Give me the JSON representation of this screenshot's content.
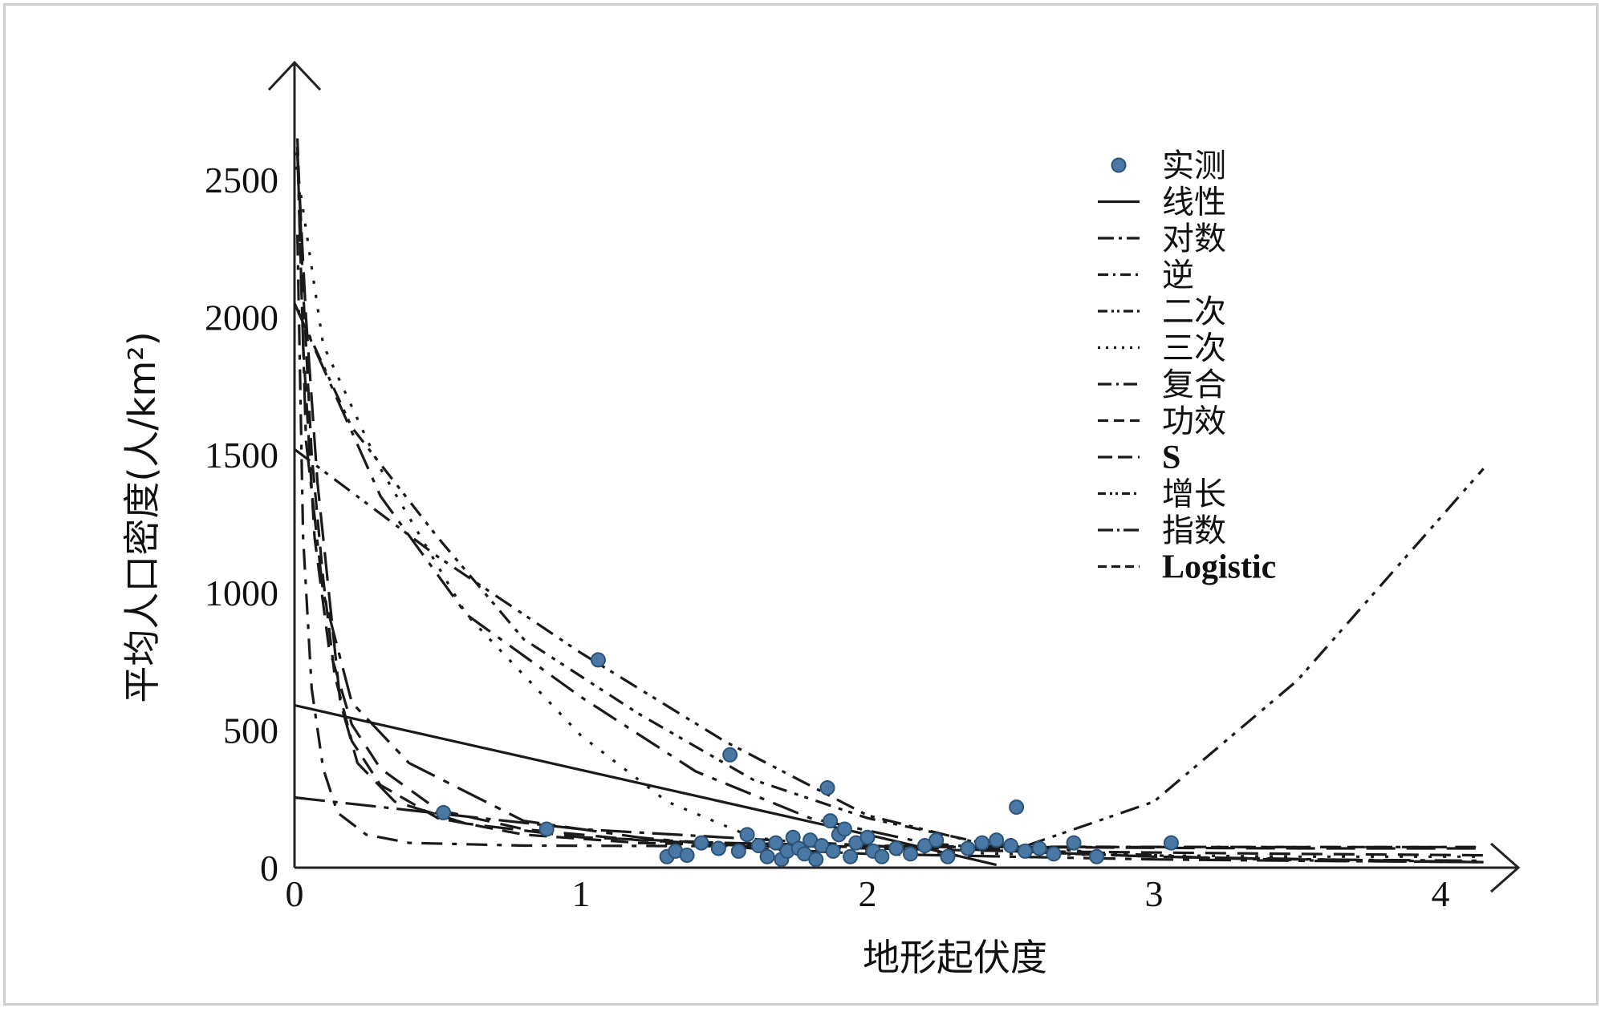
{
  "chart_data": {
    "type": "scatter",
    "xlabel": "地形起伏度",
    "ylabel": "平均人口密度(人/km²)",
    "xlim": [
      0,
      4.4
    ],
    "ylim": [
      0,
      2800
    ],
    "x_ticks": [
      "0",
      "1",
      "2",
      "3",
      "4"
    ],
    "y_ticks": [
      "0",
      "500",
      "1000",
      "1500",
      "2000",
      "2500"
    ],
    "legend_position": "top-right",
    "grid": false,
    "points_color": "#4a78a4",
    "series": [
      {
        "name": "实测",
        "kind": "points",
        "points": [
          [
            0.52,
            200
          ],
          [
            0.88,
            140
          ],
          [
            1.06,
            755
          ],
          [
            1.3,
            40
          ],
          [
            1.33,
            60
          ],
          [
            1.37,
            45
          ],
          [
            1.42,
            90
          ],
          [
            1.48,
            70
          ],
          [
            1.52,
            410
          ],
          [
            1.55,
            60
          ],
          [
            1.58,
            120
          ],
          [
            1.62,
            80
          ],
          [
            1.65,
            40
          ],
          [
            1.68,
            90
          ],
          [
            1.7,
            30
          ],
          [
            1.72,
            60
          ],
          [
            1.74,
            110
          ],
          [
            1.76,
            70
          ],
          [
            1.78,
            50
          ],
          [
            1.8,
            100
          ],
          [
            1.82,
            30
          ],
          [
            1.84,
            80
          ],
          [
            1.86,
            290
          ],
          [
            1.87,
            170
          ],
          [
            1.88,
            60
          ],
          [
            1.9,
            120
          ],
          [
            1.92,
            140
          ],
          [
            1.94,
            40
          ],
          [
            1.96,
            90
          ],
          [
            2.0,
            110
          ],
          [
            2.02,
            60
          ],
          [
            2.05,
            40
          ],
          [
            2.1,
            70
          ],
          [
            2.15,
            50
          ],
          [
            2.2,
            80
          ],
          [
            2.24,
            100
          ],
          [
            2.28,
            40
          ],
          [
            2.35,
            70
          ],
          [
            2.4,
            90
          ],
          [
            2.45,
            100
          ],
          [
            2.5,
            80
          ],
          [
            2.52,
            220
          ],
          [
            2.55,
            60
          ],
          [
            2.6,
            70
          ],
          [
            2.65,
            50
          ],
          [
            2.72,
            90
          ],
          [
            2.8,
            40
          ],
          [
            3.06,
            90
          ]
        ]
      },
      {
        "name": "线性",
        "kind": "curve",
        "points": [
          [
            0,
            590
          ],
          [
            2.0,
            120
          ],
          [
            2.45,
            10
          ]
        ]
      },
      {
        "name": "对数",
        "kind": "curve",
        "points": [
          [
            0.01,
            2600
          ],
          [
            0.04,
            1550
          ],
          [
            0.1,
            1000
          ],
          [
            0.2,
            600
          ],
          [
            0.4,
            380
          ],
          [
            0.8,
            170
          ],
          [
            1.2,
            110
          ],
          [
            1.6,
            70
          ],
          [
            2.0,
            50
          ],
          [
            2.5,
            40
          ],
          [
            3.0,
            30
          ],
          [
            3.5,
            25
          ],
          [
            4.15,
            20
          ]
        ]
      },
      {
        "name": "逆",
        "kind": "curve",
        "points": [
          [
            0.01,
            2300
          ],
          [
            0.03,
            1200
          ],
          [
            0.06,
            650
          ],
          [
            0.1,
            360
          ],
          [
            0.15,
            200
          ],
          [
            0.25,
            120
          ],
          [
            0.4,
            90
          ],
          [
            0.8,
            80
          ],
          [
            1.5,
            78
          ],
          [
            2.5,
            76
          ],
          [
            3.5,
            75
          ],
          [
            4.15,
            75
          ]
        ]
      },
      {
        "name": "二次",
        "kind": "curve",
        "points": [
          [
            0,
            1520
          ],
          [
            0.5,
            1130
          ],
          [
            1.0,
            780
          ],
          [
            1.5,
            460
          ],
          [
            2.0,
            190
          ],
          [
            2.5,
            60
          ],
          [
            3.0,
            240
          ],
          [
            3.5,
            680
          ],
          [
            4.15,
            1450
          ]
        ]
      },
      {
        "name": "三次",
        "kind": "curve",
        "points": [
          [
            0,
            2600
          ],
          [
            0.1,
            1900
          ],
          [
            0.3,
            1450
          ],
          [
            0.6,
            920
          ],
          [
            1.0,
            480
          ],
          [
            1.3,
            240
          ],
          [
            1.6,
            110
          ],
          [
            2.0,
            60
          ],
          [
            2.5,
            50
          ],
          [
            3.0,
            45
          ],
          [
            3.5,
            40
          ],
          [
            4.15,
            40
          ]
        ]
      },
      {
        "name": "复合",
        "kind": "curve",
        "points": [
          [
            0,
            2050
          ],
          [
            0.3,
            1350
          ],
          [
            0.6,
            920
          ],
          [
            1.0,
            620
          ],
          [
            1.4,
            350
          ],
          [
            1.8,
            180
          ],
          [
            2.2,
            90
          ],
          [
            2.6,
            55
          ],
          [
            3.0,
            40
          ],
          [
            3.5,
            30
          ],
          [
            4.15,
            25
          ]
        ]
      },
      {
        "name": "功效",
        "kind": "curve",
        "points": [
          [
            0.01,
            2620
          ],
          [
            0.03,
            1900
          ],
          [
            0.07,
            1200
          ],
          [
            0.12,
            800
          ],
          [
            0.2,
            520
          ],
          [
            0.3,
            360
          ],
          [
            0.5,
            210
          ],
          [
            0.8,
            140
          ],
          [
            1.2,
            100
          ],
          [
            1.6,
            80
          ],
          [
            2.0,
            70
          ],
          [
            2.5,
            60
          ],
          [
            3.0,
            55
          ],
          [
            3.5,
            50
          ],
          [
            4.15,
            45
          ]
        ]
      },
      {
        "name": "S",
        "kind": "curve",
        "points": [
          [
            0.01,
            2600
          ],
          [
            0.04,
            2000
          ],
          [
            0.08,
            1400
          ],
          [
            0.12,
            1000
          ],
          [
            0.16,
            600
          ],
          [
            0.22,
            380
          ],
          [
            0.35,
            240
          ],
          [
            0.6,
            160
          ],
          [
            1.0,
            110
          ],
          [
            1.5,
            90
          ],
          [
            2.0,
            80
          ],
          [
            2.5,
            75
          ],
          [
            3.0,
            72
          ],
          [
            3.5,
            70
          ],
          [
            4.15,
            70
          ]
        ]
      },
      {
        "name": "增长",
        "kind": "curve",
        "points": [
          [
            0,
            2050
          ],
          [
            0.2,
            1600
          ],
          [
            0.5,
            1200
          ],
          [
            0.8,
            830
          ],
          [
            1.2,
            560
          ],
          [
            1.6,
            320
          ],
          [
            2.0,
            180
          ],
          [
            2.4,
            90
          ],
          [
            2.8,
            55
          ],
          [
            3.2,
            35
          ],
          [
            3.6,
            25
          ],
          [
            4.15,
            20
          ]
        ]
      },
      {
        "name": "指数",
        "kind": "curve",
        "points": [
          [
            0,
            255
          ],
          [
            1.0,
            140
          ],
          [
            2.0,
            80
          ],
          [
            3.0,
            40
          ],
          [
            4.15,
            20
          ]
        ]
      },
      {
        "name": "Logistic",
        "kind": "curve",
        "points": [
          [
            0.01,
            2650
          ],
          [
            0.03,
            2100
          ],
          [
            0.06,
            1500
          ],
          [
            0.1,
            1050
          ],
          [
            0.14,
            700
          ],
          [
            0.2,
            460
          ],
          [
            0.3,
            300
          ],
          [
            0.5,
            180
          ],
          [
            0.8,
            120
          ],
          [
            1.2,
            90
          ],
          [
            1.6,
            80
          ],
          [
            2.0,
            75
          ],
          [
            2.5,
            75
          ],
          [
            3.0,
            75
          ],
          [
            3.5,
            75
          ],
          [
            4.15,
            75
          ]
        ]
      }
    ]
  }
}
